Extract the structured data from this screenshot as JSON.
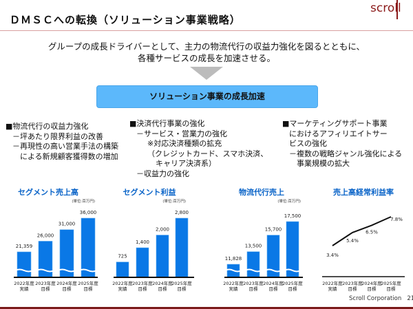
{
  "header": {
    "title": "ＤＭＳＣへの転換（ソリューション事業戦略）",
    "logo": "scroll"
  },
  "intro": [
    "グループの成長ドライバーとして、主力の物流代行の収益力強化を図るとともに、",
    "各種サービスの成長を加速させる。"
  ],
  "highlight": "ソリューション事業の成長加速",
  "columns": [
    [
      "■物流代行の収益力強化",
      "－坪あたり限界利益の改善",
      "－再現性の高い営業手法の構築",
      "　による新規顧客獲得数の増加"
    ],
    [
      "■決済代行事業の強化",
      "－サービス・営業力の強化",
      "※対応決済種類の拡充",
      "（クレジットカード、スマホ決済、",
      "キャリア決済系）",
      "－収益力の強化"
    ],
    [
      "■マーケティングサポート事業",
      "におけるアフィリエイトサー",
      "ビスの強化",
      "－複数の戦略ジャンル強化による",
      "　事業規模の拡大"
    ]
  ],
  "chart_data": [
    {
      "type": "bar",
      "title": "セグメント売上高",
      "unit": "(単位:百万円)",
      "categories": [
        [
          "2022年度",
          "実績"
        ],
        [
          "2023年度",
          "目標"
        ],
        [
          "2024年度",
          "目標"
        ],
        [
          "2025年度",
          "目標"
        ]
      ],
      "values": [
        21359,
        26000,
        31000,
        36000
      ],
      "labels": [
        "21,359",
        "26,000",
        "31,000",
        "36,000"
      ],
      "broken_axis": true,
      "color": "#0a78e6"
    },
    {
      "type": "bar",
      "title": "セグメント利益",
      "unit": "(単位:百万円)",
      "categories": [
        [
          "2022年度",
          "実績"
        ],
        [
          "2023年度",
          "目標"
        ],
        [
          "2024年度",
          "目標"
        ],
        [
          "2025年度",
          "目標"
        ]
      ],
      "values": [
        725,
        1400,
        2000,
        2800
      ],
      "labels": [
        "725",
        "1,400",
        "2,000",
        "2,800"
      ],
      "broken_axis": false,
      "color": "#0a78e6"
    },
    {
      "type": "bar",
      "title": "物流代行売上",
      "unit": "(単位:百万円)",
      "categories": [
        [
          "2022年度",
          "実績"
        ],
        [
          "2023年度",
          "目標"
        ],
        [
          "2024年度",
          "目標"
        ],
        [
          "2025年度",
          "目標"
        ]
      ],
      "values": [
        11828,
        13500,
        15700,
        17500
      ],
      "labels": [
        "11,828",
        "13,500",
        "15,700",
        "17,500"
      ],
      "broken_axis": true,
      "color": "#0a78e6"
    },
    {
      "type": "line",
      "title": "売上高経常利益率",
      "categories": [
        [
          "2022年度",
          "実績"
        ],
        [
          "2023年度",
          "目標"
        ],
        [
          "2024年度",
          "目標"
        ],
        [
          "2025年度",
          "目標"
        ]
      ],
      "values": [
        3.4,
        5.4,
        6.5,
        7.8
      ],
      "labels": [
        "3.4%",
        "5.4%",
        "6.5%",
        "7.8%"
      ],
      "color": "#111111"
    }
  ],
  "footer": {
    "company": "Scroll Corporation",
    "page": "21."
  }
}
